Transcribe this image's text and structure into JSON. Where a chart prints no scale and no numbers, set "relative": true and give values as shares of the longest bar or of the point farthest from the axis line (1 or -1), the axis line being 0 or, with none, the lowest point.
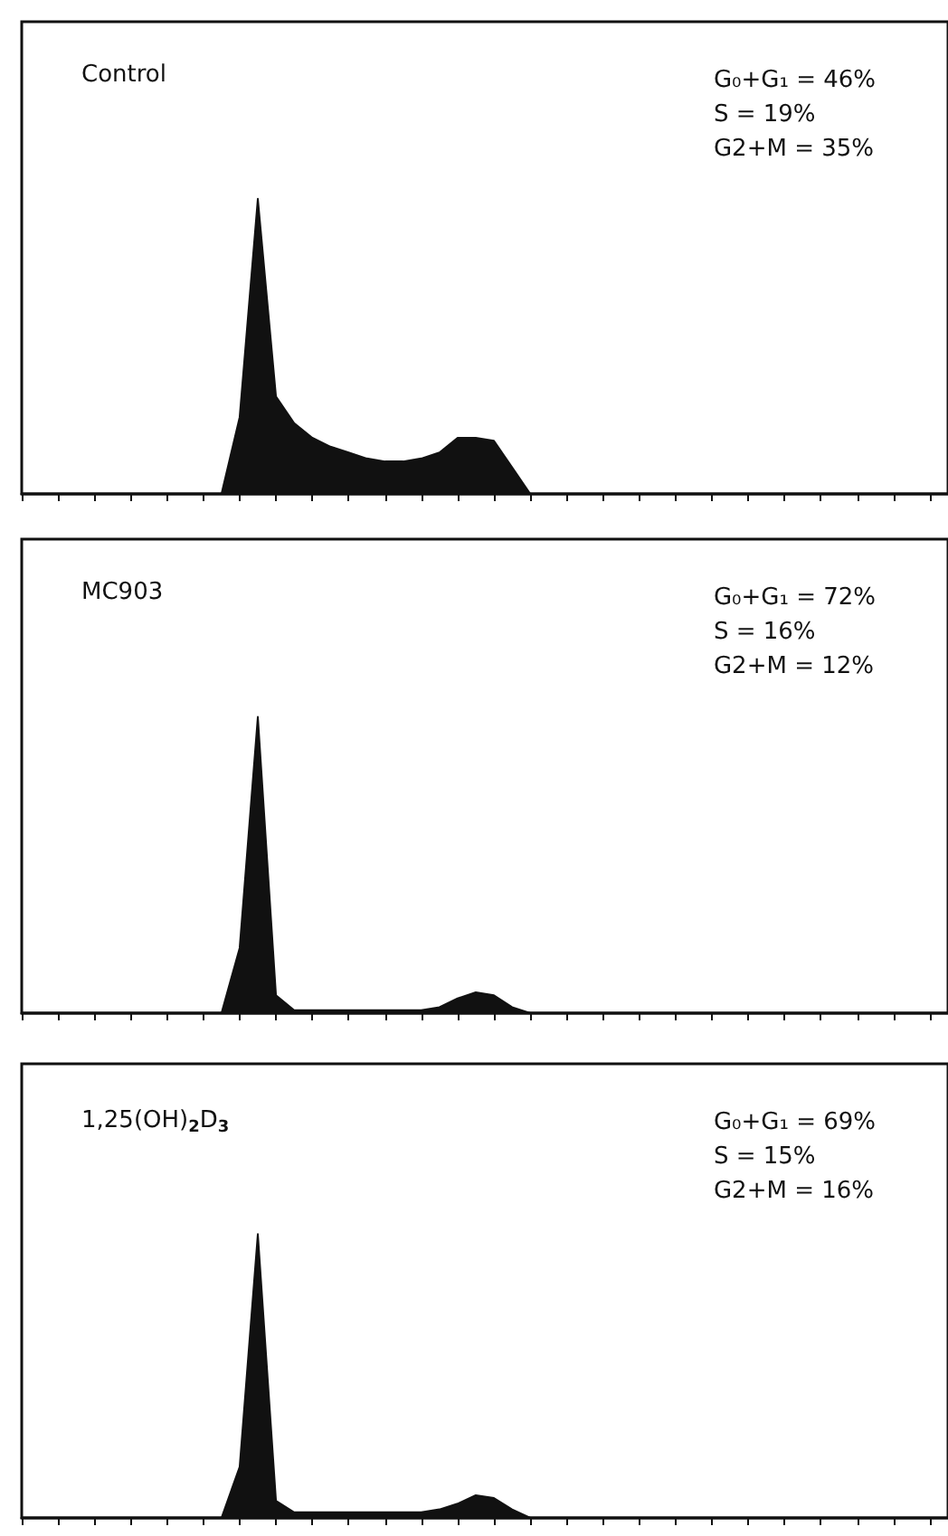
{
  "chart_data": [
    {
      "type": "area",
      "title": "Control",
      "relative": true,
      "tick_labels": false,
      "grid": false,
      "color": "#111111",
      "annotations": [
        "G₀+G₁ = 46%",
        "S = 19%",
        "G2+M = 35%"
      ],
      "categories": [
        null,
        null,
        null,
        null,
        null,
        null,
        null,
        null,
        null,
        null,
        null,
        null,
        null,
        null,
        null,
        null,
        null,
        null,
        null,
        null,
        null,
        null,
        null,
        null,
        null,
        null,
        null,
        null,
        null,
        null,
        null,
        null,
        null,
        null,
        null,
        null,
        null,
        null,
        null,
        null,
        null,
        null,
        null,
        null,
        null,
        null,
        null,
        null,
        null,
        null,
        null,
        null
      ],
      "values": [
        0,
        0,
        0,
        0,
        0,
        0,
        0,
        0,
        0,
        0,
        0,
        0,
        0.26,
        1.0,
        0.33,
        0.24,
        0.19,
        0.16,
        0.14,
        0.12,
        0.11,
        0.11,
        0.12,
        0.14,
        0.19,
        0.19,
        0.18,
        0.09,
        0,
        0,
        0,
        0,
        0,
        0,
        0,
        0,
        0,
        0,
        0,
        0,
        0,
        0,
        0,
        0,
        0,
        0,
        0,
        0,
        0,
        0,
        0,
        0
      ]
    },
    {
      "type": "area",
      "title": "MC903",
      "relative": true,
      "tick_labels": false,
      "grid": false,
      "color": "#111111",
      "annotations": [
        "G₀+G₁ = 72%",
        "S = 16%",
        "G2+M = 12%"
      ],
      "categories": [
        null,
        null,
        null,
        null,
        null,
        null,
        null,
        null,
        null,
        null,
        null,
        null,
        null,
        null,
        null,
        null,
        null,
        null,
        null,
        null,
        null,
        null,
        null,
        null,
        null,
        null,
        null,
        null,
        null,
        null,
        null,
        null,
        null,
        null,
        null,
        null,
        null,
        null,
        null,
        null,
        null,
        null,
        null,
        null,
        null,
        null,
        null,
        null,
        null,
        null,
        null,
        null
      ],
      "values": [
        0,
        0,
        0,
        0,
        0,
        0,
        0,
        0,
        0,
        0,
        0,
        0,
        0.22,
        1.0,
        0.06,
        0.01,
        0.01,
        0.01,
        0.01,
        0.01,
        0.01,
        0.01,
        0.01,
        0.02,
        0.05,
        0.07,
        0.06,
        0.02,
        0,
        0,
        0,
        0,
        0,
        0,
        0,
        0,
        0,
        0,
        0,
        0,
        0,
        0,
        0,
        0,
        0,
        0,
        0,
        0,
        0,
        0,
        0,
        0
      ]
    },
    {
      "type": "area",
      "title": "1,25(OH)$_{2}$D$_{3}$",
      "relative": true,
      "tick_labels": false,
      "grid": false,
      "color": "#111111",
      "annotations": [
        "G₀+G₁ = 69%",
        "S = 15%",
        "G2+M = 16%"
      ],
      "categories": [
        null,
        null,
        null,
        null,
        null,
        null,
        null,
        null,
        null,
        null,
        null,
        null,
        null,
        null,
        null,
        null,
        null,
        null,
        null,
        null,
        null,
        null,
        null,
        null,
        null,
        null,
        null,
        null,
        null,
        null,
        null,
        null,
        null,
        null,
        null,
        null,
        null,
        null,
        null,
        null,
        null,
        null,
        null,
        null,
        null,
        null,
        null,
        null,
        null,
        null,
        null,
        null
      ],
      "values": [
        0,
        0,
        0,
        0,
        0,
        0,
        0,
        0,
        0,
        0,
        0,
        0,
        0.18,
        1.0,
        0.06,
        0.02,
        0.02,
        0.02,
        0.02,
        0.02,
        0.02,
        0.02,
        0.02,
        0.03,
        0.05,
        0.08,
        0.07,
        0.03,
        0,
        0,
        0,
        0,
        0,
        0,
        0,
        0,
        0,
        0,
        0,
        0,
        0,
        0,
        0,
        0,
        0,
        0,
        0,
        0,
        0,
        0,
        0,
        0
      ]
    }
  ]
}
